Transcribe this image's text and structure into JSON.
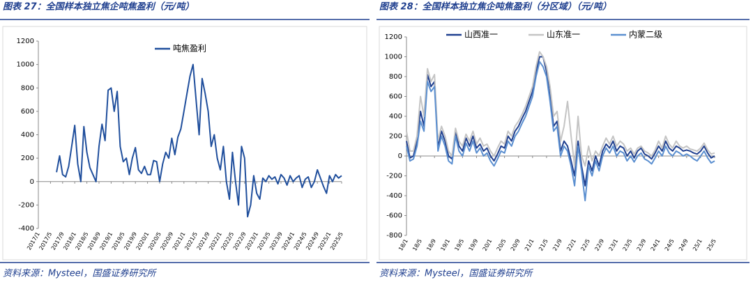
{
  "chart_data": [
    {
      "type": "line",
      "title": "图表 27：全国样本独立焦企吨焦盈利（元/吨）",
      "source": "资料来源：Mysteel，国盛证券研究所",
      "categories": [
        "2017/1",
        null,
        null,
        null,
        "2017/5",
        null,
        null,
        null,
        "2017/9",
        null,
        null,
        null,
        "2018/1",
        null,
        null,
        null,
        "2018/5",
        null,
        null,
        null,
        "2018/9",
        null,
        null,
        null,
        "2019/1",
        null,
        null,
        null,
        "2019/5",
        null,
        null,
        null,
        "2019/9",
        null,
        null,
        null,
        "2020/1",
        null,
        null,
        null,
        "2020/5",
        null,
        null,
        null,
        "2020/9",
        null,
        null,
        null,
        "2021/1",
        null,
        null,
        null,
        "2021/5",
        null,
        null,
        null,
        "2021/9",
        null,
        null,
        null,
        "2022/1",
        null,
        null,
        null,
        "2022/5",
        null,
        null,
        null,
        "2022/9",
        null,
        null,
        null,
        "2023/1",
        null,
        null,
        null,
        "2023/5",
        null,
        null,
        null,
        "2023/9",
        null,
        null,
        null,
        "2024/1",
        null,
        null,
        null,
        "2024/5",
        null,
        null,
        null,
        "2024/9",
        null,
        null,
        null,
        "2025/1",
        null,
        null,
        null,
        "2025/5"
      ],
      "series": [
        {
          "name": "吨焦盈利",
          "color": "#1f4e9c",
          "values": [
            null,
            null,
            null,
            null,
            null,
            null,
            80,
            220,
            60,
            40,
            130,
            300,
            480,
            150,
            0,
            470,
            250,
            120,
            60,
            0,
            300,
            490,
            350,
            780,
            800,
            600,
            770,
            300,
            170,
            200,
            60,
            200,
            290,
            100,
            70,
            130,
            60,
            60,
            180,
            170,
            0,
            150,
            250,
            200,
            370,
            230,
            380,
            450,
            600,
            750,
            900,
            1000,
            700,
            400,
            880,
            750,
            600,
            300,
            400,
            200,
            100,
            300,
            0,
            -150,
            250,
            0,
            -200,
            300,
            200,
            -300,
            -200,
            50,
            -100,
            -150,
            30,
            0,
            50,
            20,
            40,
            -20,
            60,
            30,
            -30,
            50,
            0,
            30,
            50,
            -50,
            20,
            40,
            -50,
            0,
            100,
            30,
            -40,
            -100,
            50,
            0,
            60,
            30,
            50
          ]
        }
      ],
      "ylim": [
        -400,
        1200
      ],
      "yticks": [
        -400,
        -200,
        0,
        200,
        400,
        600,
        800,
        1000,
        1200
      ],
      "grid": false,
      "legend": "top"
    },
    {
      "type": "line",
      "title": "图表 28：全国样本独立焦企吨焦盈利（分区域）（元/吨）",
      "source": "资料来源：Mysteel，国盛证券研究所",
      "categories": [
        "18/1",
        null,
        null,
        null,
        "18/5",
        null,
        null,
        null,
        "18/9",
        null,
        null,
        null,
        "19/1",
        null,
        null,
        null,
        "19/5",
        null,
        null,
        null,
        "19/9",
        null,
        null,
        null,
        "20/1",
        null,
        null,
        null,
        "20/5",
        null,
        null,
        null,
        "20/9",
        null,
        null,
        null,
        "21/1",
        null,
        null,
        null,
        "21/5",
        null,
        null,
        null,
        "21/9",
        null,
        null,
        null,
        "22/1",
        null,
        null,
        null,
        "22/5",
        null,
        null,
        null,
        "22/9",
        null,
        null,
        null,
        "23/1",
        null,
        null,
        null,
        "23/5",
        null,
        null,
        null,
        "23/9",
        null,
        null,
        null,
        "24/1",
        null,
        null,
        null,
        "24/5",
        null,
        null,
        null,
        "24/9",
        null,
        null,
        null,
        "25/1",
        null,
        null,
        null,
        "25/5"
      ],
      "series": [
        {
          "name": "山西准一",
          "color": "#1f3f8f",
          "values": [
            150,
            -20,
            0,
            150,
            450,
            300,
            820,
            700,
            750,
            100,
            250,
            150,
            0,
            -30,
            250,
            100,
            50,
            180,
            100,
            200,
            80,
            120,
            50,
            80,
            0,
            -50,
            20,
            100,
            80,
            200,
            150,
            250,
            300,
            380,
            450,
            550,
            650,
            850,
            1000,
            1000,
            850,
            600,
            300,
            350,
            50,
            150,
            100,
            -50,
            -200,
            150,
            -100,
            -300,
            -50,
            -150,
            0,
            -100,
            50,
            120,
            80,
            150,
            50,
            100,
            80,
            0,
            50,
            -20,
            50,
            80,
            20,
            0,
            -30,
            30,
            100,
            50,
            150,
            80,
            50,
            100,
            80,
            50,
            60,
            50,
            30,
            20,
            50,
            100,
            30,
            -20,
            0
          ]
        },
        {
          "name": "山东准一",
          "color": "#c4c4c4",
          "values": [
            250,
            50,
            50,
            200,
            600,
            400,
            880,
            750,
            820,
            150,
            300,
            200,
            50,
            0,
            280,
            150,
            100,
            220,
            150,
            250,
            120,
            180,
            100,
            120,
            50,
            0,
            80,
            150,
            120,
            250,
            200,
            300,
            350,
            420,
            500,
            600,
            700,
            900,
            1050,
            1000,
            900,
            700,
            400,
            450,
            150,
            300,
            550,
            200,
            -100,
            400,
            0,
            -100,
            100,
            -50,
            50,
            0,
            100,
            180,
            120,
            200,
            100,
            150,
            120,
            50,
            80,
            20,
            80,
            100,
            50,
            30,
            0,
            60,
            150,
            80,
            200,
            120,
            80,
            150,
            100,
            80,
            100,
            70,
            60,
            50,
            80,
            130,
            60,
            20,
            30
          ]
        },
        {
          "name": "内蒙二级",
          "color": "#5b8fd0",
          "values": [
            100,
            -50,
            -30,
            100,
            350,
            250,
            750,
            650,
            700,
            50,
            200,
            100,
            -50,
            -80,
            200,
            50,
            0,
            130,
            50,
            150,
            30,
            80,
            0,
            30,
            -50,
            -100,
            -30,
            50,
            30,
            150,
            100,
            200,
            250,
            330,
            400,
            500,
            600,
            800,
            950,
            900,
            800,
            550,
            250,
            300,
            0,
            100,
            50,
            -100,
            -300,
            100,
            -150,
            -450,
            -100,
            -200,
            -50,
            -150,
            0,
            80,
            30,
            100,
            0,
            50,
            30,
            -50,
            0,
            -60,
            0,
            30,
            -30,
            -50,
            -80,
            -20,
            50,
            0,
            100,
            30,
            0,
            50,
            30,
            0,
            20,
            0,
            -30,
            -50,
            0,
            50,
            -20,
            -70,
            -50
          ]
        }
      ],
      "ylim": [
        -800,
        1200
      ],
      "yticks": [
        -800,
        -600,
        -400,
        -200,
        0,
        200,
        400,
        600,
        800,
        1000,
        1200
      ],
      "grid": false,
      "legend": "top"
    }
  ]
}
